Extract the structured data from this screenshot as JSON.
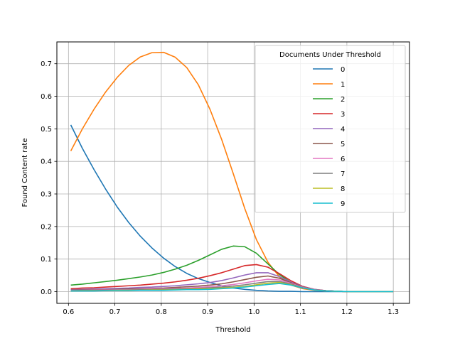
{
  "chart_data": {
    "type": "line",
    "xlabel": "Threshold",
    "ylabel": "Found Content rate",
    "xlim": [
      0.575,
      1.335
    ],
    "ylim": [
      -0.036,
      0.767
    ],
    "xticks": [
      "0.6",
      "0.7",
      "0.8",
      "0.9",
      "1.0",
      "1.1",
      "1.2",
      "1.3"
    ],
    "yticks": [
      "0.0",
      "0.1",
      "0.2",
      "0.3",
      "0.4",
      "0.5",
      "0.6",
      "0.7"
    ],
    "grid": true,
    "legend": {
      "title": "Documents Under Threshold",
      "placement": "upper-right"
    },
    "x": [
      0.605,
      0.63,
      0.655,
      0.68,
      0.705,
      0.73,
      0.755,
      0.78,
      0.805,
      0.83,
      0.855,
      0.88,
      0.905,
      0.93,
      0.955,
      0.98,
      1.005,
      1.03,
      1.055,
      1.08,
      1.105,
      1.13,
      1.155,
      1.18,
      1.205,
      1.23,
      1.255,
      1.28,
      1.3
    ],
    "series": [
      {
        "name": "0",
        "color": "#1f77b4",
        "values": [
          0.512,
          0.44,
          0.375,
          0.315,
          0.26,
          0.212,
          0.17,
          0.134,
          0.103,
          0.077,
          0.056,
          0.04,
          0.028,
          0.018,
          0.011,
          0.007,
          0.004,
          0.002,
          0.001,
          0.001,
          0.0,
          0.0,
          0.0,
          0.0,
          0.0,
          0.0,
          0.0,
          0.0,
          0.0
        ]
      },
      {
        "name": "1",
        "color": "#ff7f0e",
        "values": [
          0.432,
          0.5,
          0.56,
          0.613,
          0.658,
          0.695,
          0.721,
          0.734,
          0.735,
          0.72,
          0.688,
          0.635,
          0.56,
          0.468,
          0.363,
          0.255,
          0.16,
          0.09,
          0.045,
          0.02,
          0.009,
          0.004,
          0.002,
          0.001,
          0.0,
          0.0,
          0.0,
          0.0,
          0.0
        ]
      },
      {
        "name": "2",
        "color": "#2ca02c",
        "values": [
          0.02,
          0.023,
          0.027,
          0.031,
          0.035,
          0.04,
          0.045,
          0.051,
          0.059,
          0.069,
          0.081,
          0.096,
          0.113,
          0.13,
          0.14,
          0.138,
          0.118,
          0.085,
          0.052,
          0.028,
          0.013,
          0.006,
          0.003,
          0.001,
          0.0,
          0.0,
          0.0,
          0.0,
          0.0
        ]
      },
      {
        "name": "3",
        "color": "#d62728",
        "values": [
          0.009,
          0.011,
          0.012,
          0.014,
          0.016,
          0.018,
          0.02,
          0.023,
          0.026,
          0.03,
          0.035,
          0.041,
          0.049,
          0.058,
          0.069,
          0.08,
          0.083,
          0.075,
          0.055,
          0.033,
          0.016,
          0.007,
          0.003,
          0.001,
          0.0,
          0.0,
          0.0,
          0.0,
          0.0
        ]
      },
      {
        "name": "4",
        "color": "#9467bd",
        "values": [
          0.006,
          0.007,
          0.008,
          0.009,
          0.01,
          0.011,
          0.013,
          0.014,
          0.016,
          0.018,
          0.021,
          0.024,
          0.028,
          0.034,
          0.042,
          0.051,
          0.058,
          0.058,
          0.046,
          0.029,
          0.015,
          0.007,
          0.003,
          0.001,
          0.0,
          0.0,
          0.0,
          0.0,
          0.0
        ]
      },
      {
        "name": "5",
        "color": "#8c564b",
        "values": [
          0.005,
          0.005,
          0.006,
          0.006,
          0.007,
          0.008,
          0.009,
          0.01,
          0.011,
          0.013,
          0.015,
          0.017,
          0.02,
          0.024,
          0.03,
          0.037,
          0.044,
          0.048,
          0.041,
          0.027,
          0.014,
          0.006,
          0.003,
          0.001,
          0.0,
          0.0,
          0.0,
          0.0,
          0.0
        ]
      },
      {
        "name": "6",
        "color": "#e377c2",
        "values": [
          0.004,
          0.004,
          0.005,
          0.005,
          0.006,
          0.006,
          0.007,
          0.008,
          0.009,
          0.01,
          0.011,
          0.013,
          0.015,
          0.018,
          0.022,
          0.027,
          0.033,
          0.038,
          0.036,
          0.025,
          0.013,
          0.006,
          0.002,
          0.001,
          0.0,
          0.0,
          0.0,
          0.0,
          0.0
        ]
      },
      {
        "name": "7",
        "color": "#7f7f7f",
        "values": [
          0.003,
          0.004,
          0.004,
          0.004,
          0.005,
          0.005,
          0.006,
          0.006,
          0.007,
          0.008,
          0.009,
          0.01,
          0.012,
          0.014,
          0.017,
          0.021,
          0.026,
          0.031,
          0.031,
          0.023,
          0.012,
          0.005,
          0.002,
          0.001,
          0.0,
          0.0,
          0.0,
          0.0,
          0.0
        ]
      },
      {
        "name": "8",
        "color": "#bcbd22",
        "values": [
          0.002,
          0.003,
          0.003,
          0.003,
          0.004,
          0.004,
          0.004,
          0.005,
          0.005,
          0.006,
          0.007,
          0.008,
          0.009,
          0.011,
          0.013,
          0.016,
          0.021,
          0.026,
          0.028,
          0.021,
          0.011,
          0.005,
          0.002,
          0.001,
          0.0,
          0.0,
          0.0,
          0.0,
          0.0
        ]
      },
      {
        "name": "9",
        "color": "#17becf",
        "values": [
          0.002,
          0.002,
          0.002,
          0.003,
          0.003,
          0.003,
          0.004,
          0.004,
          0.004,
          0.005,
          0.006,
          0.006,
          0.007,
          0.009,
          0.011,
          0.014,
          0.018,
          0.022,
          0.025,
          0.02,
          0.011,
          0.005,
          0.002,
          0.001,
          0.0,
          0.0,
          0.0,
          0.0,
          0.0
        ]
      }
    ]
  }
}
